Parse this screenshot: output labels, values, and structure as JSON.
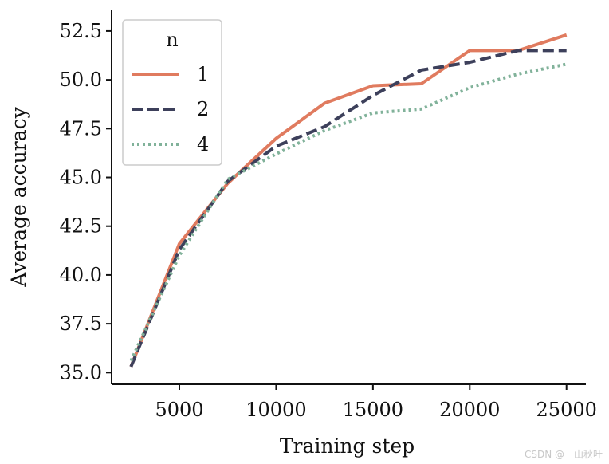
{
  "chart_data": {
    "type": "line",
    "xlabel": "Training step",
    "ylabel": "Average accuracy",
    "xlim": [
      1500,
      26000
    ],
    "ylim": [
      34.4,
      53.6
    ],
    "xticks": [
      5000,
      10000,
      15000,
      20000,
      25000
    ],
    "yticks": [
      35.0,
      37.5,
      40.0,
      42.5,
      45.0,
      47.5,
      50.0,
      52.5
    ],
    "grid": false,
    "legend": {
      "title": "n",
      "placement": "top-left"
    },
    "series": [
      {
        "name": "1",
        "color": "#e07b5f",
        "style": "solid",
        "x": [
          2500,
          5000,
          7500,
          10000,
          12500,
          15000,
          17500,
          20000,
          22500,
          25000
        ],
        "y": [
          35.3,
          41.6,
          44.7,
          47.0,
          48.8,
          49.7,
          49.8,
          51.5,
          51.5,
          52.3
        ]
      },
      {
        "name": "2",
        "color": "#3d405b",
        "style": "dashed",
        "x": [
          2500,
          5000,
          7500,
          10000,
          12500,
          15000,
          17500,
          20000,
          22500,
          25000
        ],
        "y": [
          35.3,
          41.3,
          44.8,
          46.6,
          47.6,
          49.2,
          50.5,
          50.9,
          51.5,
          51.5
        ]
      },
      {
        "name": "4",
        "color": "#81b29a",
        "style": "dotted",
        "x": [
          2500,
          5000,
          7500,
          10000,
          12500,
          15000,
          17500,
          20000,
          22500,
          25000
        ],
        "y": [
          35.6,
          41.0,
          44.9,
          46.2,
          47.4,
          48.3,
          48.5,
          49.6,
          50.3,
          50.8
        ]
      }
    ]
  },
  "watermark": "CSDN @一山秋叶"
}
